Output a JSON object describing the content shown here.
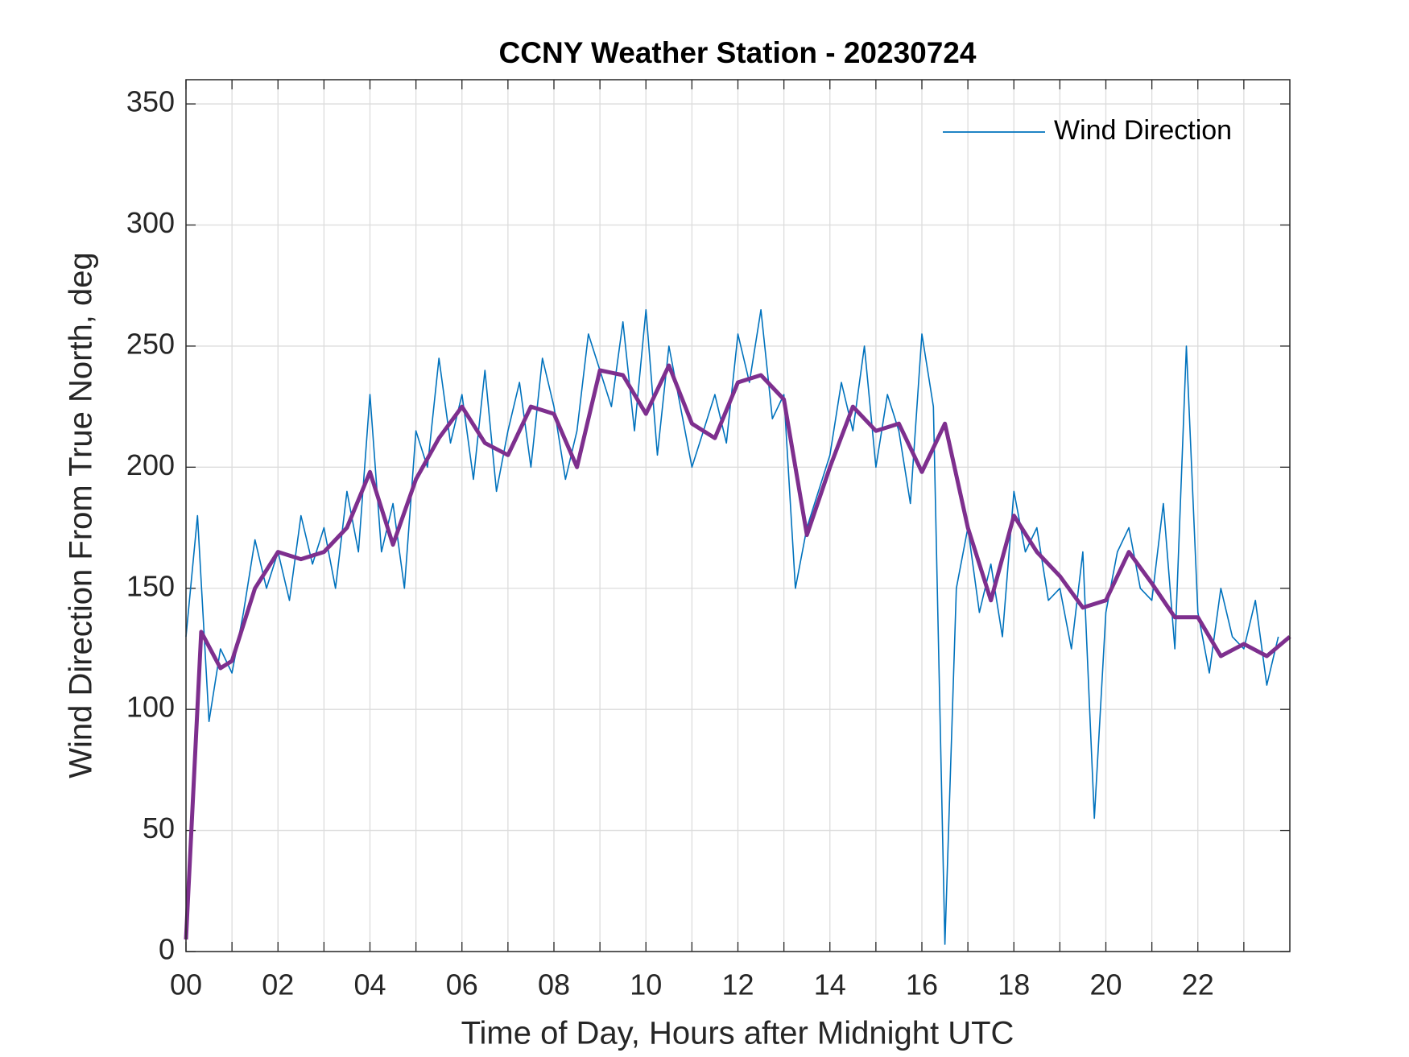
{
  "chart_data": {
    "type": "line",
    "title": "CCNY Weather Station - 20230724",
    "x_label": "Time of Day, Hours after Midnight UTC",
    "y_label": "Wind Direction From True North, deg",
    "xlim": [
      0,
      24
    ],
    "ylim": [
      0,
      360
    ],
    "xticks": [
      {
        "value": 0,
        "label": "00"
      },
      {
        "value": 2,
        "label": "02"
      },
      {
        "value": 4,
        "label": "04"
      },
      {
        "value": 6,
        "label": "06"
      },
      {
        "value": 8,
        "label": "08"
      },
      {
        "value": 10,
        "label": "10"
      },
      {
        "value": 12,
        "label": "12"
      },
      {
        "value": 14,
        "label": "14"
      },
      {
        "value": 16,
        "label": "16"
      },
      {
        "value": 18,
        "label": "18"
      },
      {
        "value": 20,
        "label": "20"
      },
      {
        "value": 22,
        "label": "22"
      }
    ],
    "xminorticks": [
      1,
      3,
      5,
      7,
      9,
      11,
      13,
      15,
      17,
      19,
      21,
      23
    ],
    "yticks": [
      0,
      50,
      100,
      150,
      200,
      250,
      300,
      350
    ],
    "grid": true,
    "legend": "upper right",
    "series": [
      {
        "name": "Wind Direction",
        "color": "#0072bd",
        "x": [
          0,
          0.25,
          0.5,
          0.75,
          1,
          1.25,
          1.5,
          1.75,
          2,
          2.25,
          2.5,
          2.75,
          3,
          3.25,
          3.5,
          3.75,
          4,
          4.25,
          4.5,
          4.75,
          5,
          5.25,
          5.5,
          5.75,
          6,
          6.25,
          6.5,
          6.75,
          7,
          7.25,
          7.5,
          7.75,
          8,
          8.25,
          8.5,
          8.75,
          9,
          9.25,
          9.5,
          9.75,
          10,
          10.25,
          10.5,
          10.75,
          11,
          11.25,
          11.5,
          11.75,
          12,
          12.25,
          12.5,
          12.75,
          13,
          13.25,
          13.5,
          13.75,
          14,
          14.25,
          14.5,
          14.75,
          15,
          15.25,
          15.5,
          15.75,
          16,
          16.25,
          16.5,
          16.75,
          17,
          17.25,
          17.5,
          17.75,
          18,
          18.25,
          18.5,
          18.75,
          19,
          19.25,
          19.5,
          19.75,
          20,
          20.25,
          20.5,
          20.75,
          21,
          21.25,
          21.5,
          21.75,
          22,
          22.25,
          22.5,
          22.75,
          23,
          23.25,
          23.5,
          23.75
        ],
        "values": [
          130,
          180,
          95,
          125,
          115,
          140,
          170,
          150,
          165,
          145,
          180,
          160,
          175,
          150,
          190,
          165,
          230,
          165,
          185,
          150,
          215,
          200,
          245,
          210,
          230,
          195,
          240,
          190,
          215,
          235,
          200,
          245,
          225,
          195,
          215,
          255,
          240,
          225,
          260,
          215,
          265,
          205,
          250,
          225,
          200,
          215,
          230,
          210,
          255,
          235,
          265,
          220,
          230,
          150,
          175,
          190,
          205,
          235,
          215,
          250,
          200,
          230,
          215,
          185,
          255,
          225,
          3,
          150,
          175,
          140,
          160,
          130,
          190,
          165,
          175,
          145,
          150,
          125,
          165,
          55,
          140,
          165,
          175,
          150,
          145,
          185,
          125,
          250,
          140,
          115,
          150,
          130,
          125,
          145,
          110,
          130
        ]
      },
      {
        "color": "#7e2f8e",
        "x": [
          0,
          0.33,
          0.75,
          1,
          1.5,
          2,
          2.5,
          3,
          3.5,
          4,
          4.5,
          5,
          5.5,
          6,
          6.5,
          7,
          7.5,
          8,
          8.5,
          9,
          9.5,
          10,
          10.5,
          11,
          11.5,
          12,
          12.5,
          13,
          13.5,
          14,
          14.5,
          15,
          15.5,
          16,
          16.5,
          17,
          17.5,
          18,
          18.5,
          19,
          19.5,
          20,
          20.5,
          21,
          21.5,
          22,
          22.5,
          23,
          23.5,
          24
        ],
        "values": [
          5,
          132,
          117,
          120,
          150,
          165,
          162,
          165,
          175,
          198,
          168,
          195,
          212,
          225,
          210,
          205,
          225,
          222,
          200,
          240,
          238,
          222,
          242,
          218,
          212,
          235,
          238,
          228,
          172,
          200,
          225,
          215,
          218,
          198,
          218,
          175,
          145,
          180,
          165,
          155,
          142,
          145,
          165,
          152,
          138,
          138,
          122,
          127,
          122,
          130
        ]
      }
    ]
  }
}
